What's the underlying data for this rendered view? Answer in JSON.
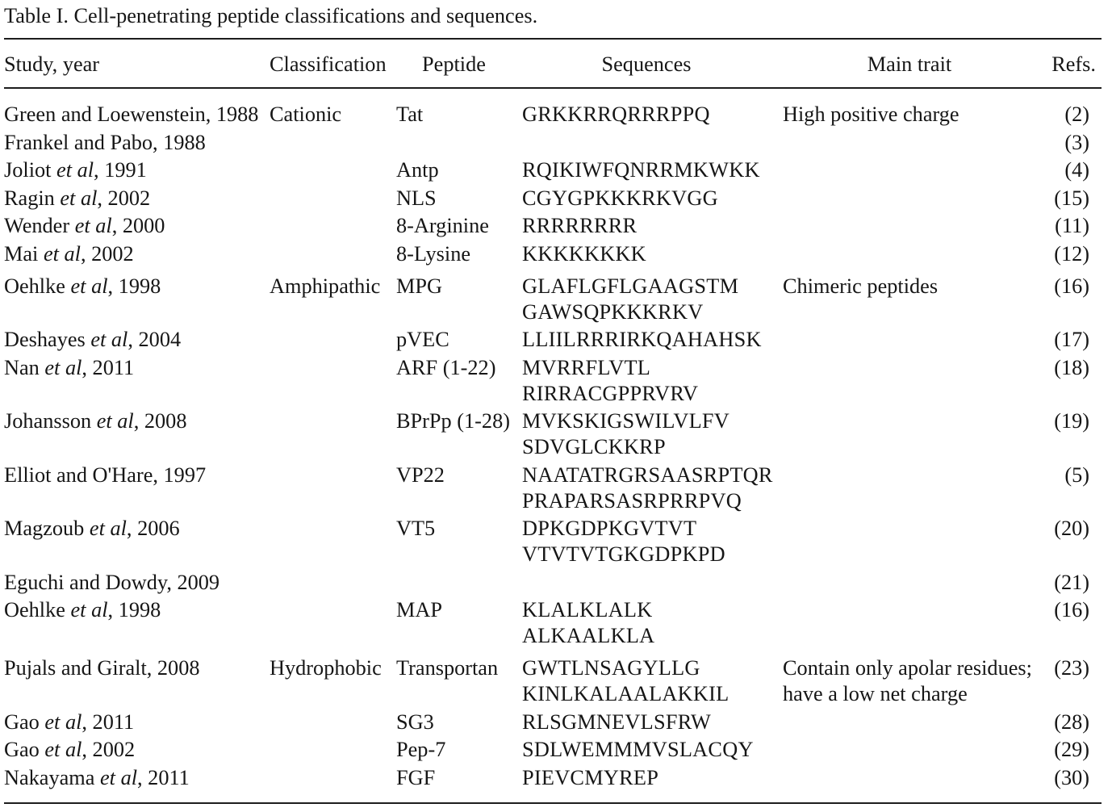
{
  "caption": {
    "label": "Table I.",
    "text": "Cell-penetrating peptide classifications and sequences."
  },
  "columns": [
    {
      "label": "Study, year"
    },
    {
      "label": "Classification"
    },
    {
      "label": "Peptide"
    },
    {
      "label": "Sequences"
    },
    {
      "label": "Main trait"
    },
    {
      "label": "Refs."
    }
  ],
  "rows": [
    {
      "study": {
        "pre": "Green and Loewenstein, 1988",
        "italic": "",
        "post": ""
      },
      "classification": "Cationic",
      "peptide": "Tat",
      "sequence_lines": [
        "GRKKRRQRRRPPQ"
      ],
      "trait_lines": [
        "High positive charge"
      ],
      "ref": "(2)",
      "group_start": false
    },
    {
      "study": {
        "pre": "Frankel and Pabo, 1988",
        "italic": "",
        "post": ""
      },
      "classification": "",
      "peptide": "",
      "sequence_lines": [],
      "trait_lines": [],
      "ref": "(3)",
      "group_start": false
    },
    {
      "study": {
        "pre": "Joliot ",
        "italic": "et al",
        "post": ", 1991"
      },
      "classification": "",
      "peptide": "Antp",
      "sequence_lines": [
        "RQIKIWFQNRRMKWKK"
      ],
      "trait_lines": [],
      "ref": "(4)",
      "group_start": false
    },
    {
      "study": {
        "pre": "Ragin ",
        "italic": "et al",
        "post": ", 2002"
      },
      "classification": "",
      "peptide": "NLS",
      "sequence_lines": [
        "CGYGPKKKRKVGG"
      ],
      "trait_lines": [],
      "ref": "(15)",
      "group_start": false
    },
    {
      "study": {
        "pre": "Wender ",
        "italic": "et al",
        "post": ", 2000"
      },
      "classification": "",
      "peptide": "8-Arginine",
      "sequence_lines": [
        "RRRRRRRR"
      ],
      "trait_lines": [],
      "ref": "(11)",
      "group_start": false
    },
    {
      "study": {
        "pre": "Mai ",
        "italic": "et al",
        "post": ", 2002"
      },
      "classification": "",
      "peptide": "8-Lysine",
      "sequence_lines": [
        "KKKKKKKK"
      ],
      "trait_lines": [],
      "ref": "(12)",
      "group_start": false
    },
    {
      "study": {
        "pre": "Oehlke ",
        "italic": "et al",
        "post": ", 1998"
      },
      "classification": "Amphipathic",
      "peptide": "MPG",
      "sequence_lines": [
        "GLAFLGFLGAAGSTM",
        "GAWSQPKKKRKV"
      ],
      "trait_lines": [
        "Chimeric peptides"
      ],
      "ref": "(16)",
      "group_start": true
    },
    {
      "study": {
        "pre": "Deshayes ",
        "italic": "et al",
        "post": ", 2004"
      },
      "classification": "",
      "peptide": "pVEC",
      "sequence_lines": [
        "LLIILRRRIRKQAHAHSK"
      ],
      "trait_lines": [],
      "ref": "(17)",
      "group_start": false
    },
    {
      "study": {
        "pre": "Nan ",
        "italic": "et al",
        "post": ", 2011"
      },
      "classification": "",
      "peptide": "ARF (1-22)",
      "sequence_lines": [
        "MVRRFLVTL",
        "RIRRACGPPRVRV"
      ],
      "trait_lines": [],
      "ref": "(18)",
      "group_start": false
    },
    {
      "study": {
        "pre": "Johansson ",
        "italic": "et al",
        "post": ", 2008"
      },
      "classification": "",
      "peptide": "BPrPp (1-28)",
      "sequence_lines": [
        "MVKSKIGSWILVLFV",
        "SDVGLCKKRP"
      ],
      "trait_lines": [],
      "ref": "(19)",
      "group_start": false
    },
    {
      "study": {
        "pre": "Elliot and O'Hare, 1997",
        "italic": "",
        "post": ""
      },
      "classification": "",
      "peptide": "VP22",
      "sequence_lines": [
        "NAATATRGRSAASRPTQR",
        "PRAPARSASRPRRPVQ"
      ],
      "trait_lines": [],
      "ref": "(5)",
      "group_start": false
    },
    {
      "study": {
        "pre": "Magzoub ",
        "italic": "et al",
        "post": ", 2006"
      },
      "classification": "",
      "peptide": "VT5",
      "sequence_lines": [
        "DPKGDPKGVTVT",
        "VTVTVTGKGDPKPD"
      ],
      "trait_lines": [],
      "ref": "(20)",
      "group_start": false
    },
    {
      "study": {
        "pre": "Eguchi and Dowdy, 2009",
        "italic": "",
        "post": ""
      },
      "classification": "",
      "peptide": "",
      "sequence_lines": [],
      "trait_lines": [],
      "ref": "(21)",
      "group_start": false
    },
    {
      "study": {
        "pre": "Oehlke ",
        "italic": "et al",
        "post": ", 1998"
      },
      "classification": "",
      "peptide": "MAP",
      "sequence_lines": [
        "KLALKLALK",
        "ALKAALKLA"
      ],
      "trait_lines": [],
      "ref": "(16)",
      "group_start": false
    },
    {
      "study": {
        "pre": "Pujals and Giralt, 2008",
        "italic": "",
        "post": ""
      },
      "classification": "Hydrophobic",
      "peptide": "Transportan",
      "sequence_lines": [
        "GWTLNSAGYLLG",
        "KINLKALAALAKKIL"
      ],
      "trait_lines": [
        "Contain only apolar residues;",
        "have a low net charge"
      ],
      "ref": "(23)",
      "group_start": true
    },
    {
      "study": {
        "pre": "Gao ",
        "italic": "et al",
        "post": ", 2011"
      },
      "classification": "",
      "peptide": "SG3",
      "sequence_lines": [
        "RLSGMNEVLSFRW"
      ],
      "trait_lines": [],
      "ref": "(28)",
      "group_start": false
    },
    {
      "study": {
        "pre": "Gao ",
        "italic": "et al",
        "post": ", 2002"
      },
      "classification": "",
      "peptide": "Pep-7",
      "sequence_lines": [
        "SDLWEMMMVSLACQY"
      ],
      "trait_lines": [],
      "ref": "(29)",
      "group_start": false
    },
    {
      "study": {
        "pre": "Nakayama ",
        "italic": "et al",
        "post": ", 2011"
      },
      "classification": "",
      "peptide": "FGF",
      "sequence_lines": [
        "PIEVCMYREP"
      ],
      "trait_lines": [],
      "ref": "(30)",
      "group_start": false
    }
  ]
}
